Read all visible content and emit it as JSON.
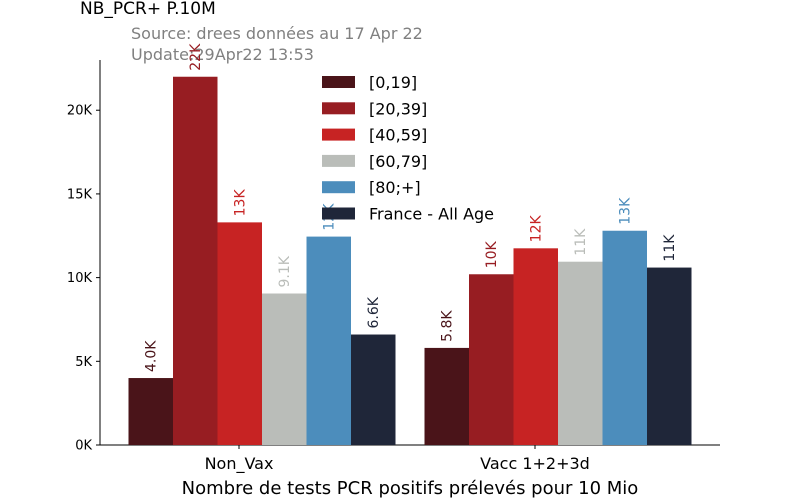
{
  "chart_data": {
    "type": "bar",
    "title": "NB_PCR+ P.10M",
    "subtitle_lines": [
      "Source: drees données au 17 Apr 22",
      "Update:29Apr22 13:53"
    ],
    "xlabel": "Nombre de tests PCR positifs prélevés pour 10 Mio",
    "ylabel": "",
    "categories": [
      "Non_Vax",
      "Vacc 1+2+3d"
    ],
    "ylim": [
      0,
      23000
    ],
    "yticks": [
      0,
      5000,
      10000,
      15000,
      20000
    ],
    "ytick_labels": [
      "0K",
      "5K",
      "10K",
      "15K",
      "20K"
    ],
    "grid": false,
    "legend_position": "top-center",
    "series": [
      {
        "name": "[0,19]",
        "color": "#4a1419",
        "values": [
          4000,
          5800
        ],
        "labels": [
          "4.0K",
          "5.8K"
        ]
      },
      {
        "name": "[20,39]",
        "color": "#971d22",
        "values": [
          22000,
          10200
        ],
        "labels": [
          "22K",
          "10K"
        ]
      },
      {
        "name": "[40,59]",
        "color": "#c72323",
        "values": [
          13300,
          11750
        ],
        "labels": [
          "13K",
          "12K"
        ]
      },
      {
        "name": "[60,79]",
        "color": "#babdb9",
        "values": [
          9050,
          10950
        ],
        "labels": [
          "9.1K",
          "11K"
        ]
      },
      {
        "name": "[80;+]",
        "color": "#4c8dbc",
        "values": [
          12450,
          12800
        ],
        "labels": [
          "12K",
          "13K"
        ]
      },
      {
        "name": "France - All Age",
        "color": "#1f2639",
        "values": [
          6600,
          10600
        ],
        "labels": [
          "6.6K",
          "11K"
        ]
      }
    ]
  }
}
